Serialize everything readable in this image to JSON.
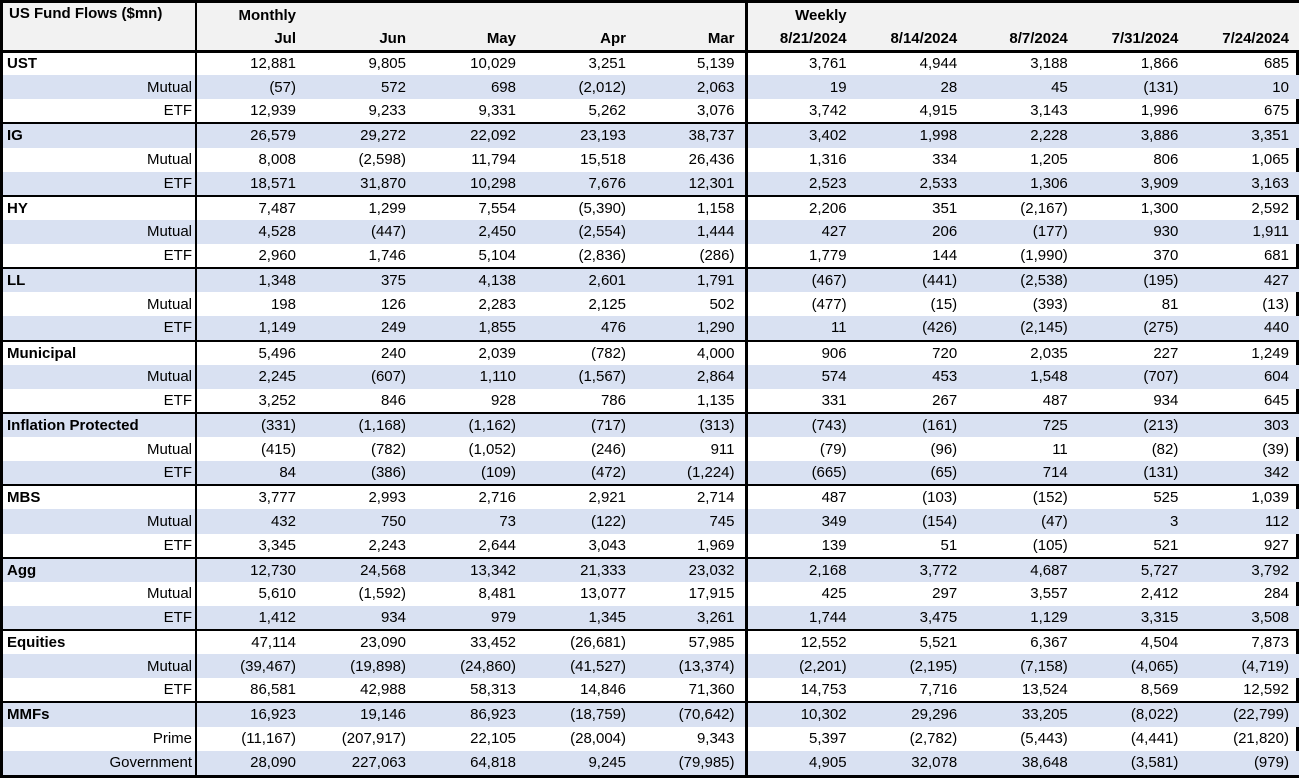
{
  "table": {
    "title": "US Fund Flows ($mn)",
    "colors": {
      "band": "#D9E1F2",
      "header_bg": "#F2F2F2",
      "border": "#000000",
      "negative_format": "parentheses"
    },
    "sections": [
      {
        "label": "Monthly",
        "columns": [
          "Jul",
          "Jun",
          "May",
          "Apr",
          "Mar"
        ]
      },
      {
        "label": "Weekly",
        "columns": [
          "8/21/2024",
          "8/14/2024",
          "8/7/2024",
          "7/31/2024",
          "7/24/2024"
        ]
      }
    ],
    "groups": [
      {
        "category": "UST",
        "rows": [
          {
            "label": "UST",
            "monthly": [
              "12,881",
              "9,805",
              "10,029",
              "3,251",
              "5,139"
            ],
            "weekly": [
              "3,761",
              "4,944",
              "3,188",
              "1,866",
              "685"
            ]
          },
          {
            "label": "Mutual",
            "monthly": [
              "(57)",
              "572",
              "698",
              "(2,012)",
              "2,063"
            ],
            "weekly": [
              "19",
              "28",
              "45",
              "(131)",
              "10"
            ]
          },
          {
            "label": "ETF",
            "monthly": [
              "12,939",
              "9,233",
              "9,331",
              "5,262",
              "3,076"
            ],
            "weekly": [
              "3,742",
              "4,915",
              "3,143",
              "1,996",
              "675"
            ]
          }
        ]
      },
      {
        "category": "IG",
        "rows": [
          {
            "label": "IG",
            "monthly": [
              "26,579",
              "29,272",
              "22,092",
              "23,193",
              "38,737"
            ],
            "weekly": [
              "3,402",
              "1,998",
              "2,228",
              "3,886",
              "3,351"
            ]
          },
          {
            "label": "Mutual",
            "monthly": [
              "8,008",
              "(2,598)",
              "11,794",
              "15,518",
              "26,436"
            ],
            "weekly": [
              "1,316",
              "334",
              "1,205",
              "806",
              "1,065"
            ]
          },
          {
            "label": "ETF",
            "monthly": [
              "18,571",
              "31,870",
              "10,298",
              "7,676",
              "12,301"
            ],
            "weekly": [
              "2,523",
              "2,533",
              "1,306",
              "3,909",
              "3,163"
            ]
          }
        ]
      },
      {
        "category": "HY",
        "rows": [
          {
            "label": "HY",
            "monthly": [
              "7,487",
              "1,299",
              "7,554",
              "(5,390)",
              "1,158"
            ],
            "weekly": [
              "2,206",
              "351",
              "(2,167)",
              "1,300",
              "2,592"
            ]
          },
          {
            "label": "Mutual",
            "monthly": [
              "4,528",
              "(447)",
              "2,450",
              "(2,554)",
              "1,444"
            ],
            "weekly": [
              "427",
              "206",
              "(177)",
              "930",
              "1,911"
            ]
          },
          {
            "label": "ETF",
            "monthly": [
              "2,960",
              "1,746",
              "5,104",
              "(2,836)",
              "(286)"
            ],
            "weekly": [
              "1,779",
              "144",
              "(1,990)",
              "370",
              "681"
            ]
          }
        ]
      },
      {
        "category": "LL",
        "rows": [
          {
            "label": "LL",
            "monthly": [
              "1,348",
              "375",
              "4,138",
              "2,601",
              "1,791"
            ],
            "weekly": [
              "(467)",
              "(441)",
              "(2,538)",
              "(195)",
              "427"
            ]
          },
          {
            "label": "Mutual",
            "monthly": [
              "198",
              "126",
              "2,283",
              "2,125",
              "502"
            ],
            "weekly": [
              "(477)",
              "(15)",
              "(393)",
              "81",
              "(13)"
            ]
          },
          {
            "label": "ETF",
            "monthly": [
              "1,149",
              "249",
              "1,855",
              "476",
              "1,290"
            ],
            "weekly": [
              "11",
              "(426)",
              "(2,145)",
              "(275)",
              "440"
            ]
          }
        ]
      },
      {
        "category": "Municipal",
        "rows": [
          {
            "label": "Municipal",
            "monthly": [
              "5,496",
              "240",
              "2,039",
              "(782)",
              "4,000"
            ],
            "weekly": [
              "906",
              "720",
              "2,035",
              "227",
              "1,249"
            ]
          },
          {
            "label": "Mutual",
            "monthly": [
              "2,245",
              "(607)",
              "1,110",
              "(1,567)",
              "2,864"
            ],
            "weekly": [
              "574",
              "453",
              "1,548",
              "(707)",
              "604"
            ]
          },
          {
            "label": "ETF",
            "monthly": [
              "3,252",
              "846",
              "928",
              "786",
              "1,135"
            ],
            "weekly": [
              "331",
              "267",
              "487",
              "934",
              "645"
            ]
          }
        ]
      },
      {
        "category": "Inflation Protected",
        "rows": [
          {
            "label": "Inflation Protected",
            "monthly": [
              "(331)",
              "(1,168)",
              "(1,162)",
              "(717)",
              "(313)"
            ],
            "weekly": [
              "(743)",
              "(161)",
              "725",
              "(213)",
              "303"
            ]
          },
          {
            "label": "Mutual",
            "monthly": [
              "(415)",
              "(782)",
              "(1,052)",
              "(246)",
              "911"
            ],
            "weekly": [
              "(79)",
              "(96)",
              "11",
              "(82)",
              "(39)"
            ]
          },
          {
            "label": "ETF",
            "monthly": [
              "84",
              "(386)",
              "(109)",
              "(472)",
              "(1,224)"
            ],
            "weekly": [
              "(665)",
              "(65)",
              "714",
              "(131)",
              "342"
            ]
          }
        ]
      },
      {
        "category": "MBS",
        "rows": [
          {
            "label": "MBS",
            "monthly": [
              "3,777",
              "2,993",
              "2,716",
              "2,921",
              "2,714"
            ],
            "weekly": [
              "487",
              "(103)",
              "(152)",
              "525",
              "1,039"
            ]
          },
          {
            "label": "Mutual",
            "monthly": [
              "432",
              "750",
              "73",
              "(122)",
              "745"
            ],
            "weekly": [
              "349",
              "(154)",
              "(47)",
              "3",
              "112"
            ]
          },
          {
            "label": "ETF",
            "monthly": [
              "3,345",
              "2,243",
              "2,644",
              "3,043",
              "1,969"
            ],
            "weekly": [
              "139",
              "51",
              "(105)",
              "521",
              "927"
            ]
          }
        ]
      },
      {
        "category": "Agg",
        "rows": [
          {
            "label": "Agg",
            "monthly": [
              "12,730",
              "24,568",
              "13,342",
              "21,333",
              "23,032"
            ],
            "weekly": [
              "2,168",
              "3,772",
              "4,687",
              "5,727",
              "3,792"
            ]
          },
          {
            "label": "Mutual",
            "monthly": [
              "5,610",
              "(1,592)",
              "8,481",
              "13,077",
              "17,915"
            ],
            "weekly": [
              "425",
              "297",
              "3,557",
              "2,412",
              "284"
            ]
          },
          {
            "label": "ETF",
            "monthly": [
              "1,412",
              "934",
              "979",
              "1,345",
              "3,261"
            ],
            "weekly": [
              "1,744",
              "3,475",
              "1,129",
              "3,315",
              "3,508"
            ]
          }
        ]
      },
      {
        "category": "Equities",
        "rows": [
          {
            "label": "Equities",
            "monthly": [
              "47,114",
              "23,090",
              "33,452",
              "(26,681)",
              "57,985"
            ],
            "weekly": [
              "12,552",
              "5,521",
              "6,367",
              "4,504",
              "7,873"
            ]
          },
          {
            "label": "Mutual",
            "monthly": [
              "(39,467)",
              "(19,898)",
              "(24,860)",
              "(41,527)",
              "(13,374)"
            ],
            "weekly": [
              "(2,201)",
              "(2,195)",
              "(7,158)",
              "(4,065)",
              "(4,719)"
            ]
          },
          {
            "label": "ETF",
            "monthly": [
              "86,581",
              "42,988",
              "58,313",
              "14,846",
              "71,360"
            ],
            "weekly": [
              "14,753",
              "7,716",
              "13,524",
              "8,569",
              "12,592"
            ]
          }
        ]
      },
      {
        "category": "MMFs",
        "rows": [
          {
            "label": "MMFs",
            "monthly": [
              "16,923",
              "19,146",
              "86,923",
              "(18,759)",
              "(70,642)"
            ],
            "weekly": [
              "10,302",
              "29,296",
              "33,205",
              "(8,022)",
              "(22,799)"
            ]
          },
          {
            "label": "Prime",
            "monthly": [
              "(11,167)",
              "(207,917)",
              "22,105",
              "(28,004)",
              "9,343"
            ],
            "weekly": [
              "5,397",
              "(2,782)",
              "(5,443)",
              "(4,441)",
              "(21,820)"
            ]
          },
          {
            "label": "Government",
            "monthly": [
              "28,090",
              "227,063",
              "64,818",
              "9,245",
              "(79,985)"
            ],
            "weekly": [
              "4,905",
              "32,078",
              "38,648",
              "(3,581)",
              "(979)"
            ]
          }
        ]
      }
    ]
  }
}
